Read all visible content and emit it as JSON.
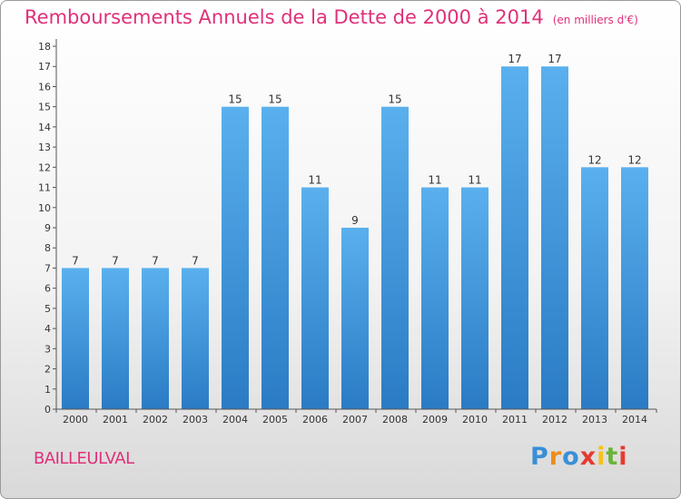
{
  "chart_data": {
    "type": "bar",
    "title": "Remboursements Annuels de la Dette de 2000 à 2014",
    "unit_note": "(en milliers d'€)",
    "categories": [
      "2000",
      "2001",
      "2002",
      "2003",
      "2004",
      "2005",
      "2006",
      "2007",
      "2008",
      "2009",
      "2010",
      "2011",
      "2012",
      "2013",
      "2014"
    ],
    "values": [
      7,
      7,
      7,
      7,
      15,
      15,
      11,
      9,
      15,
      11,
      11,
      17,
      17,
      12,
      12
    ],
    "ylim": [
      0,
      18
    ],
    "yticks": [
      0,
      1,
      2,
      3,
      4,
      5,
      6,
      7,
      8,
      9,
      10,
      11,
      12,
      13,
      14,
      15,
      16,
      17,
      18
    ],
    "xlabel": "",
    "ylabel": "",
    "grid": false,
    "bar_color": "#4a9fe0"
  },
  "commune": "BAILLEULVAL",
  "logo": {
    "letters": [
      "P",
      "r",
      "o",
      "x",
      "i",
      "t",
      "i"
    ],
    "colors": [
      "#3a8fd6",
      "#f08c1a",
      "#3a8fd6",
      "#e43b2f",
      "#f6c21c",
      "#6bb33a",
      "#e43b2f"
    ]
  }
}
